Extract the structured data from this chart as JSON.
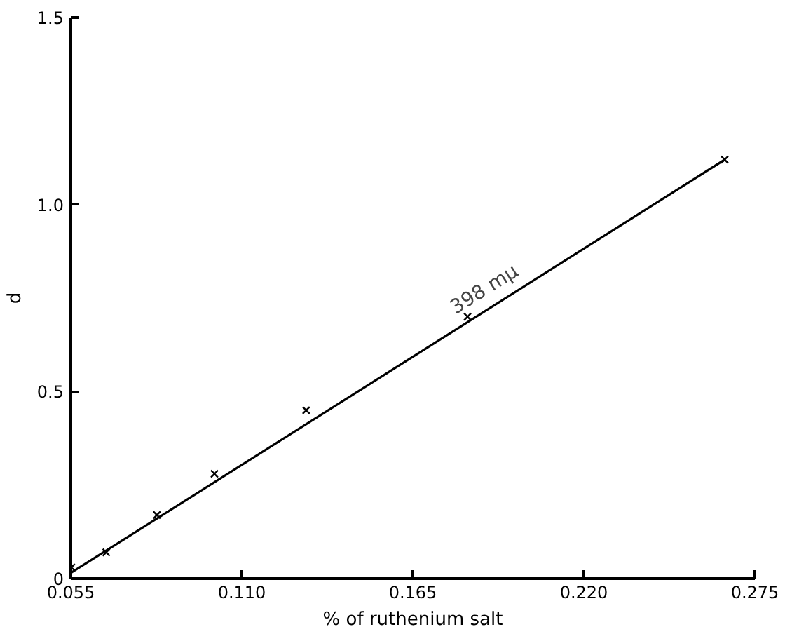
{
  "chart_data": {
    "type": "scatter",
    "xlabel": "% of ruthenium salt",
    "ylabel": "d",
    "xlim": [
      0.055,
      0.275
    ],
    "ylim": [
      0,
      1.5
    ],
    "xticks": [
      {
        "value": 0.055,
        "label": "0.055"
      },
      {
        "value": 0.11,
        "label": "0.110"
      },
      {
        "value": 0.165,
        "label": "0.165"
      },
      {
        "value": 0.22,
        "label": "0.220"
      },
      {
        "value": 0.275,
        "label": "0.275"
      }
    ],
    "yticks": [
      0,
      0.5,
      {
        "value": 1.0,
        "label": "1.0"
      },
      1.5
    ],
    "grid": false,
    "series": [
      {
        "marker": "cross",
        "color": "#000000",
        "x": [
          0.0552,
          0.0664,
          0.0827,
          0.1012,
          0.1307,
          0.1826,
          0.2653
        ],
        "values": [
          0.03,
          0.07,
          0.17,
          0.28,
          0.45,
          0.7,
          1.12
        ]
      },
      {
        "type": "line",
        "marker": "none",
        "color": "#000000",
        "x": [
          0.055,
          0.2653
        ],
        "values": [
          0.015,
          1.12
        ]
      }
    ],
    "annotations": [
      {
        "text": "398 mμ",
        "x": 0.19,
        "y": 0.724
      }
    ]
  }
}
